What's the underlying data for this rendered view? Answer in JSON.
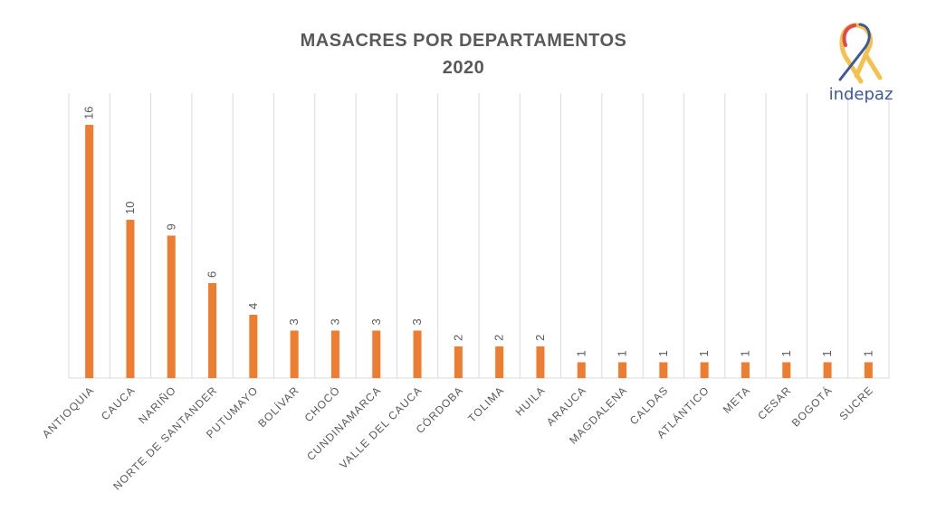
{
  "logo": {
    "text": "indepaz"
  },
  "colors": {
    "bar": "#ED7D31",
    "grid": "#D9D9D9",
    "label": "#595959",
    "title": "#595959"
  },
  "chart_data": {
    "type": "bar",
    "title": "MASACRES POR DEPARTAMENTOS",
    "subtitle": "2020",
    "categories": [
      "ANTIOQUIA",
      "CAUCA",
      "NARIÑO",
      "NORTE DE SANTANDER",
      "PUTUMAYO",
      "BOLÍVAR",
      "CHOCÓ",
      "CUNDINAMARCA",
      "VALLE DEL CAUCA",
      "CÓRDOBA",
      "TOLIMA",
      "HUILA",
      "ARAUCA",
      "MAGDALENA",
      "CALDAS",
      "ATLÁNTICO",
      "META",
      "CESAR",
      "BOGOTÁ",
      "SUCRE"
    ],
    "values": [
      16,
      10,
      9,
      6,
      4,
      3,
      3,
      3,
      3,
      2,
      2,
      2,
      1,
      1,
      1,
      1,
      1,
      1,
      1,
      1
    ],
    "xlabel": "",
    "ylabel": "",
    "ylim": [
      0,
      16.5
    ],
    "grid": "vertical category separators",
    "data_labels": "rotated above bars",
    "legend": "none"
  }
}
